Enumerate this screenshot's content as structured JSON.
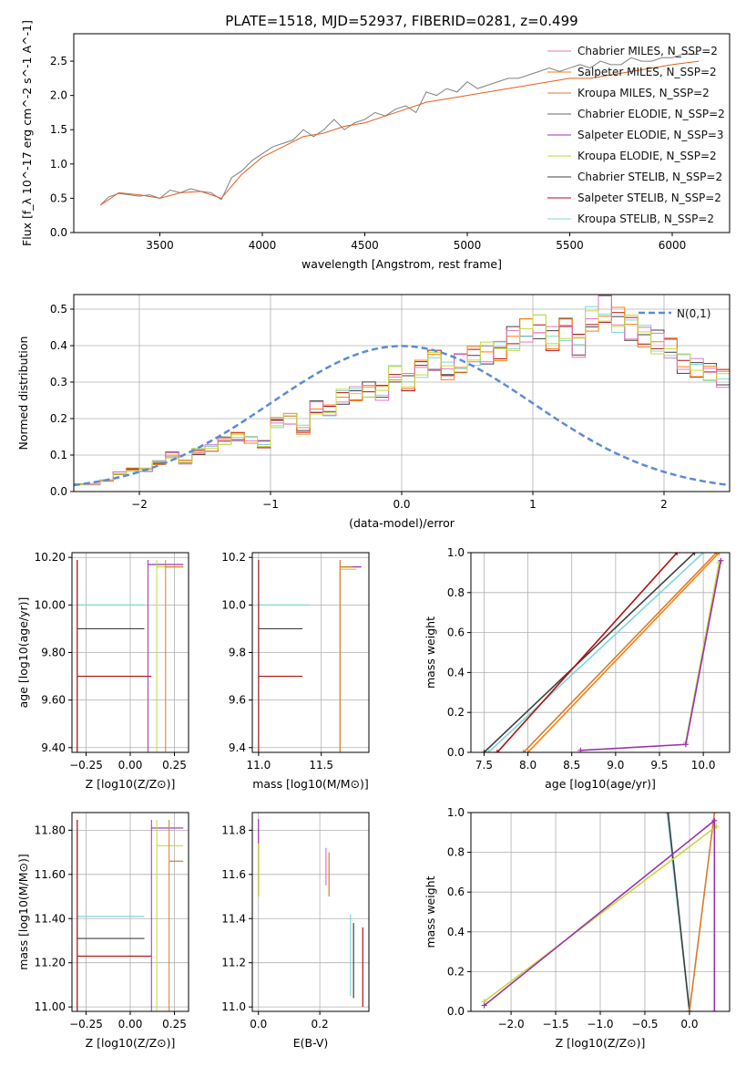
{
  "title": "PLATE=1518, MJD=52937, FIBERID=0281, z=0.499",
  "legend_entries": [
    {
      "label": "Chabrier MILES, N_SSP=2",
      "color": "#e377c2"
    },
    {
      "label": "Salpeter MILES, N_SSP=2",
      "color": "#ff7f0e"
    },
    {
      "label": "Kroupa MILES, N_SSP=2",
      "color": "#d97c2b"
    },
    {
      "label": "Chabrier ELODIE, N_SSP=2",
      "color": "#6a6a6a"
    },
    {
      "label": "Salpeter ELODIE, N_SSP=3",
      "color": "#9b30b0"
    },
    {
      "label": "Kroupa ELODIE, N_SSP=2",
      "color": "#c5d93a"
    },
    {
      "label": "Chabrier STELIB, N_SSP=2",
      "color": "#404040"
    },
    {
      "label": "Salpeter STELIB, N_SSP=2",
      "color": "#b01010"
    },
    {
      "label": "Kroupa STELIB, N_SSP=2",
      "color": "#7fd6d6"
    }
  ],
  "chart_data": [
    {
      "id": "spectrum",
      "type": "line",
      "xlabel": "wavelength [Angstrom, rest frame]",
      "ylabel": "Flux [f_λ 10^-17 erg cm^-2 s^-1 A^-1]",
      "xlim": [
        3080,
        6280
      ],
      "ylim": [
        0,
        2.9
      ],
      "xticks": [
        3500,
        4000,
        4500,
        5000,
        5500,
        6000
      ],
      "yticks": [
        0.0,
        0.5,
        1.0,
        1.5,
        2.0,
        2.5
      ],
      "grid": false,
      "legend": "top-right",
      "series": [
        {
          "name": "data",
          "color": "#808080",
          "x": [
            3210,
            3250,
            3300,
            3350,
            3400,
            3450,
            3500,
            3550,
            3600,
            3650,
            3700,
            3750,
            3800,
            3850,
            3900,
            3950,
            4000,
            4050,
            4100,
            4150,
            4200,
            4250,
            4300,
            4350,
            4400,
            4450,
            4500,
            4550,
            4600,
            4650,
            4700,
            4750,
            4800,
            4850,
            4900,
            4950,
            5000,
            5050,
            5100,
            5150,
            5200,
            5250,
            5300,
            5350,
            5400,
            5450,
            5500,
            5550,
            5600,
            5650,
            5700,
            5750,
            5800,
            5850,
            5900,
            5950,
            6000,
            6050,
            6100,
            6130
          ],
          "y": [
            0.4,
            0.52,
            0.57,
            0.55,
            0.53,
            0.55,
            0.5,
            0.62,
            0.58,
            0.64,
            0.6,
            0.58,
            0.48,
            0.8,
            0.9,
            1.05,
            1.15,
            1.25,
            1.3,
            1.35,
            1.5,
            1.4,
            1.5,
            1.65,
            1.5,
            1.6,
            1.65,
            1.75,
            1.7,
            1.8,
            1.85,
            1.75,
            2.05,
            2.0,
            2.1,
            2.05,
            2.2,
            2.1,
            2.15,
            2.2,
            2.25,
            2.25,
            2.3,
            2.35,
            2.4,
            2.35,
            2.4,
            2.45,
            2.4,
            2.5,
            2.45,
            2.45,
            2.55,
            2.5,
            2.5,
            2.55,
            2.55,
            2.6,
            2.6,
            2.6
          ]
        },
        {
          "name": "model",
          "color": "#e06020",
          "x": [
            3210,
            3300,
            3400,
            3500,
            3600,
            3700,
            3800,
            3900,
            4000,
            4100,
            4200,
            4300,
            4400,
            4500,
            4600,
            4700,
            4800,
            4900,
            5000,
            5100,
            5200,
            5300,
            5400,
            5500,
            5600,
            5700,
            5800,
            5900,
            6000,
            6130
          ],
          "y": [
            0.4,
            0.58,
            0.55,
            0.5,
            0.58,
            0.6,
            0.5,
            0.85,
            1.1,
            1.25,
            1.4,
            1.45,
            1.55,
            1.6,
            1.7,
            1.8,
            1.9,
            1.95,
            2.0,
            2.05,
            2.1,
            2.15,
            2.2,
            2.25,
            2.25,
            2.3,
            2.35,
            2.4,
            2.45,
            2.5
          ]
        }
      ]
    },
    {
      "id": "residuals",
      "type": "bar",
      "xlabel": "(data-model)/error",
      "ylabel": "Normed distribution",
      "xlim": [
        -2.5,
        2.5
      ],
      "ylim": [
        0,
        0.54
      ],
      "xticks": [
        -2,
        -1,
        0,
        1,
        2
      ],
      "yticks": [
        0.0,
        0.1,
        0.2,
        0.3,
        0.4,
        0.5
      ],
      "grid": true,
      "legend": "top-right",
      "legend_label": "N(0,1)",
      "bin_width": 0.1,
      "x_start": -2.5,
      "values": [
        0.02,
        0.02,
        0.03,
        0.05,
        0.06,
        0.06,
        0.08,
        0.1,
        0.08,
        0.11,
        0.12,
        0.14,
        0.15,
        0.14,
        0.13,
        0.19,
        0.2,
        0.17,
        0.23,
        0.22,
        0.26,
        0.27,
        0.28,
        0.27,
        0.32,
        0.3,
        0.34,
        0.36,
        0.33,
        0.35,
        0.37,
        0.38,
        0.39,
        0.42,
        0.44,
        0.45,
        0.42,
        0.45,
        0.4,
        0.47,
        0.5,
        0.47,
        0.45,
        0.43,
        0.41,
        0.39,
        0.35,
        0.34,
        0.33,
        0.31,
        0.28,
        0.25,
        0.26,
        0.24,
        0.2,
        0.18,
        0.17,
        0.16,
        0.14,
        0.13,
        0.1,
        0.1,
        0.08,
        0.07,
        0.05,
        0.04,
        0.04,
        0.03,
        0.03,
        0.03,
        0.03,
        0.03
      ]
    },
    {
      "id": "z-age",
      "type": "scatter",
      "xlabel": "Z [log10(Z/Z⊙)]",
      "ylabel": "age [log10(age/yr)]",
      "xlim": [
        -0.33,
        0.33
      ],
      "ylim": [
        9.38,
        10.22
      ],
      "xticks": [
        -0.25,
        0.0,
        0.25
      ],
      "yticks": [
        9.4,
        9.6,
        9.8,
        10.0,
        10.2
      ],
      "grid": true,
      "errorbars": [
        {
          "x": [
            -0.3,
            0.08
          ],
          "y": 10.0,
          "color": "#7fd6d6"
        },
        {
          "x": [
            -0.3,
            0.08
          ],
          "y": 9.9,
          "color": "#404040"
        },
        {
          "x": [
            -0.3,
            0.12
          ],
          "y": 9.7,
          "color": "#b01010"
        },
        {
          "x": [
            0.1,
            0.3
          ],
          "y": 10.17,
          "color": "#9b30b0"
        },
        {
          "x": [
            0.15,
            0.3
          ],
          "y": 10.16,
          "color": "#c5d93a"
        },
        {
          "x": [
            0.2,
            0.3
          ],
          "y": 10.16,
          "color": "#d97c2b"
        }
      ]
    },
    {
      "id": "mass-age",
      "type": "scatter",
      "xlabel": "mass [log10(M/M⊙)]",
      "ylabel": "",
      "xlim": [
        10.95,
        11.88
      ],
      "ylim": [
        9.38,
        10.22
      ],
      "xticks": [
        11.0,
        11.5
      ],
      "yticks": [
        9.4,
        9.6,
        9.8,
        10.0,
        10.2
      ],
      "grid": true,
      "errorbars": [
        {
          "x": [
            11.0,
            11.41
          ],
          "y": 10.0,
          "color": "#7fd6d6"
        },
        {
          "x": [
            11.0,
            11.35
          ],
          "y": 9.9,
          "color": "#404040"
        },
        {
          "x": [
            11.0,
            11.35
          ],
          "y": 9.7,
          "color": "#b01010"
        },
        {
          "x": [
            11.65,
            11.82
          ],
          "y": 10.16,
          "color": "#9b30b0"
        },
        {
          "x": [
            11.65,
            11.78
          ],
          "y": 10.15,
          "color": "#c5d93a"
        },
        {
          "x": [
            11.65,
            11.75
          ],
          "y": 10.16,
          "color": "#d97c2b"
        }
      ]
    },
    {
      "id": "age-weight",
      "type": "line",
      "xlabel": "age [log10(age/yr)]",
      "ylabel": "mass weight",
      "xlim": [
        7.35,
        10.3
      ],
      "ylim": [
        0,
        1.0
      ],
      "xticks": [
        7.5,
        8.0,
        8.5,
        9.0,
        9.5,
        10.0
      ],
      "yticks": [
        0.0,
        0.2,
        0.4,
        0.6,
        0.8,
        1.0
      ],
      "grid": true,
      "series": [
        {
          "color": "#7fd6d6",
          "x": [
            7.55,
            10.0
          ],
          "y": [
            0.0,
            1.0
          ]
        },
        {
          "color": "#404040",
          "x": [
            7.5,
            9.9
          ],
          "y": [
            0.0,
            1.0
          ]
        },
        {
          "color": "#b01010",
          "x": [
            7.65,
            9.7
          ],
          "y": [
            0.0,
            1.0
          ]
        },
        {
          "color": "#d97c2b",
          "x": [
            7.95,
            10.15
          ],
          "y": [
            0.0,
            1.0
          ]
        },
        {
          "color": "#ff7f0e",
          "x": [
            8.0,
            10.18
          ],
          "y": [
            0.0,
            1.0
          ]
        },
        {
          "color": "#c5d93a",
          "x": [
            9.8,
            10.18
          ],
          "y": [
            0.05,
            0.95
          ]
        },
        {
          "color": "#9b30b0",
          "x": [
            8.6,
            9.8,
            10.2
          ],
          "y": [
            0.01,
            0.04,
            0.96
          ]
        }
      ]
    },
    {
      "id": "z-mass",
      "type": "scatter",
      "xlabel": "Z [log10(Z/Z⊙)]",
      "ylabel": "mass [log10(M/M⊙)]",
      "xlim": [
        -0.33,
        0.33
      ],
      "ylim": [
        10.98,
        11.88
      ],
      "xticks": [
        -0.25,
        0.0,
        0.25
      ],
      "yticks": [
        11.0,
        11.2,
        11.4,
        11.6,
        11.8
      ],
      "grid": true,
      "errorbars": [
        {
          "x": [
            -0.3,
            0.08
          ],
          "y": 11.41,
          "color": "#7fd6d6"
        },
        {
          "x": [
            -0.3,
            0.08
          ],
          "y": 11.31,
          "color": "#404040"
        },
        {
          "x": [
            -0.3,
            0.12
          ],
          "y": 11.23,
          "color": "#b01010"
        },
        {
          "x": [
            0.12,
            0.3
          ],
          "y": 11.81,
          "color": "#9b30b0"
        },
        {
          "x": [
            0.15,
            0.3
          ],
          "y": 11.73,
          "color": "#c5d93a"
        },
        {
          "x": [
            0.22,
            0.3
          ],
          "y": 11.66,
          "color": "#d97c2b"
        }
      ]
    },
    {
      "id": "ebv-mass",
      "type": "scatter",
      "xlabel": "E(B-V)",
      "ylabel": "",
      "xlim": [
        -0.02,
        0.36
      ],
      "ylim": [
        10.98,
        11.88
      ],
      "xticks": [
        0.0,
        0.2
      ],
      "yticks": [
        11.0,
        11.2,
        11.4,
        11.6,
        11.8
      ],
      "grid": true,
      "errorbars": [
        {
          "x": 0.0,
          "y": [
            11.5,
            11.85
          ],
          "color": "#9b30b0"
        },
        {
          "x": 0.0,
          "y": [
            11.5,
            11.74
          ],
          "color": "#c5d93a"
        },
        {
          "x": 0.22,
          "y": [
            11.55,
            11.72
          ],
          "color": "#e377c2"
        },
        {
          "x": 0.23,
          "y": [
            11.5,
            11.7
          ],
          "color": "#d97c2b"
        },
        {
          "x": 0.3,
          "y": [
            11.05,
            11.42
          ],
          "color": "#7fd6d6"
        },
        {
          "x": 0.31,
          "y": [
            11.04,
            11.38
          ],
          "color": "#404040"
        },
        {
          "x": 0.34,
          "y": [
            11.0,
            11.36
          ],
          "color": "#b01010"
        }
      ]
    },
    {
      "id": "z-weight",
      "type": "line",
      "xlabel": "Z [log10(Z/Z⊙)]",
      "ylabel": "mass weight",
      "xlim": [
        -2.45,
        0.45
      ],
      "ylim": [
        0,
        1.0
      ],
      "xticks": [
        -2.0,
        -1.5,
        -1.0,
        -0.5,
        0.0
      ],
      "yticks": [
        0.0,
        0.2,
        0.4,
        0.6,
        0.8,
        1.0
      ],
      "grid": true,
      "series": [
        {
          "color": "#7fd6d6",
          "x": [
            -0.25,
            0.0
          ],
          "y": [
            1.0,
            0.0
          ]
        },
        {
          "color": "#404040",
          "x": [
            -0.24,
            0.0
          ],
          "y": [
            1.0,
            0.0
          ]
        },
        {
          "color": "#d97c2b",
          "x": [
            0.0,
            0.28
          ],
          "y": [
            0.0,
            1.0
          ]
        },
        {
          "color": "#c5d93a",
          "x": [
            -2.3,
            0.3
          ],
          "y": [
            0.05,
            0.93
          ]
        },
        {
          "color": "#9b30b0",
          "x": [
            -2.3,
            0.28,
            0.28
          ],
          "y": [
            0.03,
            0.96,
            0.0
          ]
        }
      ]
    }
  ]
}
